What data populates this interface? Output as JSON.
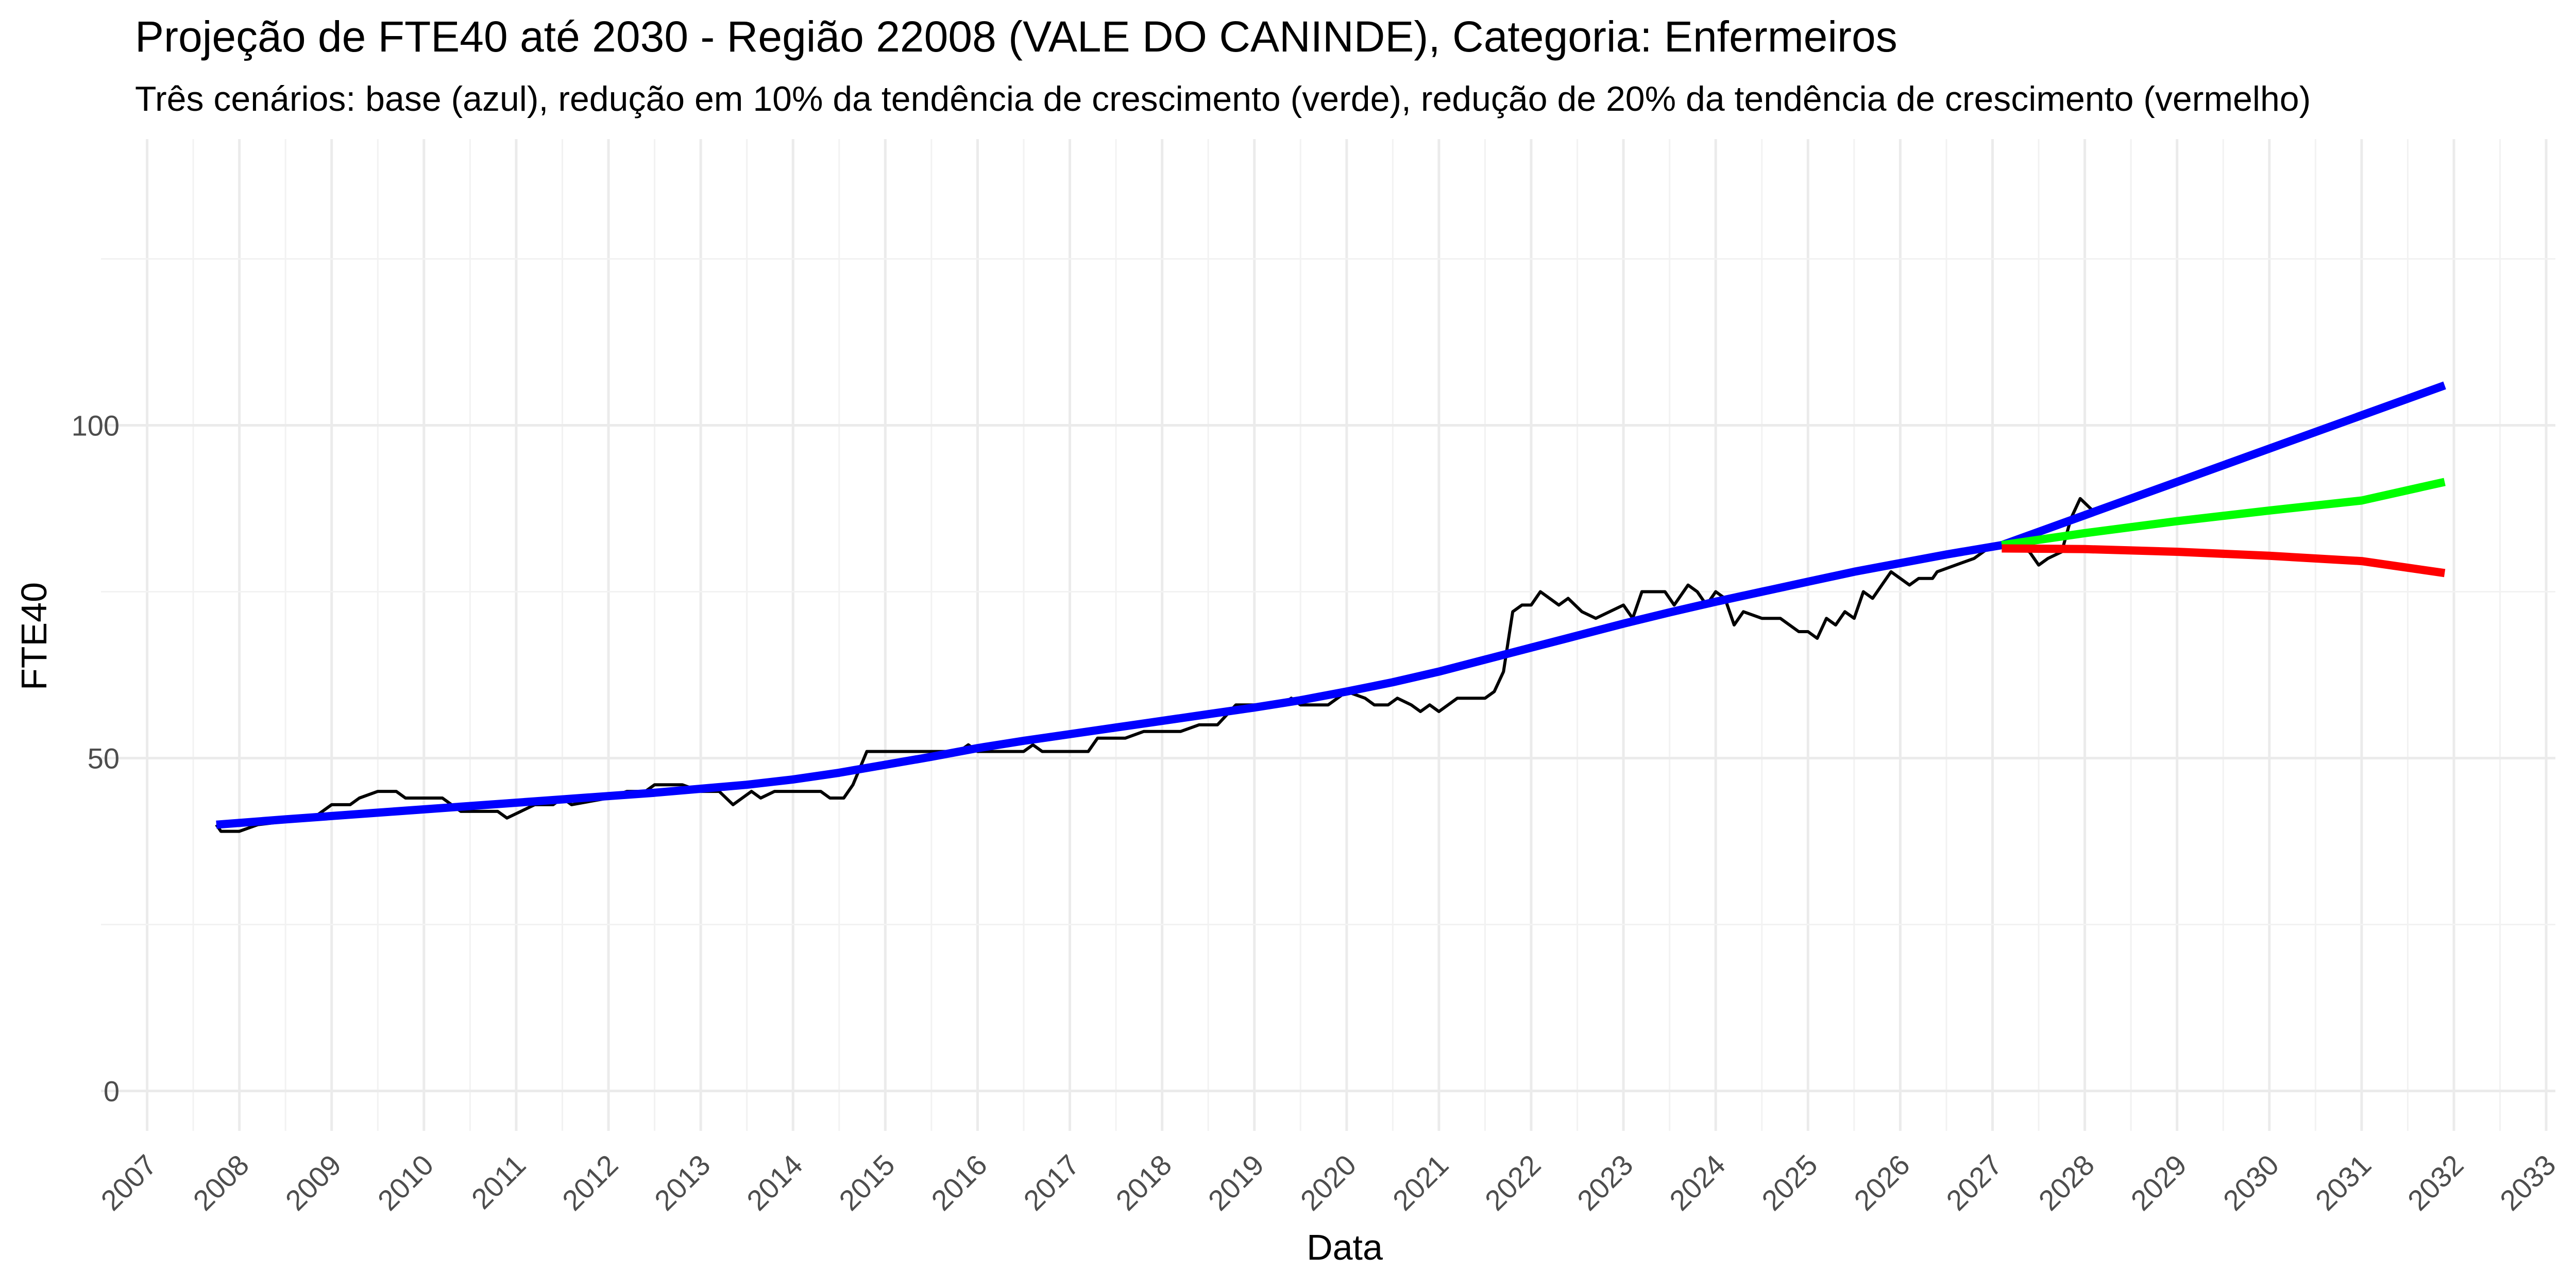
{
  "chart_data": {
    "type": "line",
    "title": "Projeção de FTE40 até 2030 - Região 22008 (VALE DO CANINDE), Categoria: Enfermeiros",
    "subtitle": "Três cenários: base (azul), redução em 10% da tendência de crescimento (verde), redução de 20% da tendência de crescimento (vermelho)",
    "xlabel": "Data",
    "ylabel": "FTE40",
    "x_ticks": [
      "2007",
      "2008",
      "2009",
      "2010",
      "2011",
      "2012",
      "2013",
      "2014",
      "2015",
      "2016",
      "2017",
      "2018",
      "2019",
      "2020",
      "2021",
      "2022",
      "2023",
      "2024",
      "2025",
      "2026",
      "2027",
      "2028",
      "2029",
      "2030",
      "2031",
      "2032",
      "2033"
    ],
    "y_ticks": [
      "0",
      "50",
      "100"
    ],
    "xlim": [
      2006.5,
      2033.1
    ],
    "ylim": [
      -6,
      143
    ],
    "grid": true,
    "series": [
      {
        "color": "#000000",
        "points": [
          [
            2007.75,
            40
          ],
          [
            2007.8,
            39
          ],
          [
            2008.0,
            39
          ],
          [
            2008.2,
            40
          ],
          [
            2008.8,
            41
          ],
          [
            2009.0,
            43
          ],
          [
            2009.2,
            43
          ],
          [
            2009.3,
            44
          ],
          [
            2009.5,
            45
          ],
          [
            2009.7,
            45
          ],
          [
            2009.8,
            44
          ],
          [
            2010.2,
            44
          ],
          [
            2010.4,
            42
          ],
          [
            2010.8,
            42
          ],
          [
            2010.9,
            41
          ],
          [
            2011.05,
            42
          ],
          [
            2011.2,
            43
          ],
          [
            2011.4,
            43
          ],
          [
            2011.5,
            44
          ],
          [
            2011.6,
            43
          ],
          [
            2012.0,
            44
          ],
          [
            2012.2,
            45
          ],
          [
            2012.4,
            45
          ],
          [
            2012.5,
            46
          ],
          [
            2012.8,
            46
          ],
          [
            2013.0,
            45
          ],
          [
            2013.2,
            45
          ],
          [
            2013.35,
            43
          ],
          [
            2013.45,
            44
          ],
          [
            2013.55,
            45
          ],
          [
            2013.65,
            44
          ],
          [
            2013.8,
            45
          ],
          [
            2014.2,
            45
          ],
          [
            2014.3,
            45
          ],
          [
            2014.4,
            44
          ],
          [
            2014.55,
            44
          ],
          [
            2014.65,
            46
          ],
          [
            2014.8,
            51
          ],
          [
            2015.8,
            51
          ],
          [
            2015.9,
            52
          ],
          [
            2016.0,
            51
          ],
          [
            2016.2,
            51
          ],
          [
            2016.5,
            51
          ],
          [
            2016.6,
            52
          ],
          [
            2016.7,
            51
          ],
          [
            2017.2,
            51
          ],
          [
            2017.3,
            53
          ],
          [
            2017.6,
            53
          ],
          [
            2017.8,
            54
          ],
          [
            2018.2,
            54
          ],
          [
            2018.4,
            55
          ],
          [
            2018.6,
            55
          ],
          [
            2018.8,
            58
          ],
          [
            2019.1,
            58
          ],
          [
            2019.3,
            58
          ],
          [
            2019.4,
            59
          ],
          [
            2019.5,
            58
          ],
          [
            2019.8,
            58
          ],
          [
            2020.0,
            60
          ],
          [
            2020.2,
            59
          ],
          [
            2020.3,
            58
          ],
          [
            2020.45,
            58
          ],
          [
            2020.55,
            59
          ],
          [
            2020.7,
            58
          ],
          [
            2020.8,
            57
          ],
          [
            2020.9,
            58
          ],
          [
            2021.0,
            57
          ],
          [
            2021.2,
            59
          ],
          [
            2021.5,
            59
          ],
          [
            2021.6,
            60
          ],
          [
            2021.7,
            63
          ],
          [
            2021.8,
            72
          ],
          [
            2021.9,
            73
          ],
          [
            2022.0,
            73
          ],
          [
            2022.1,
            75
          ],
          [
            2022.2,
            74
          ],
          [
            2022.3,
            73
          ],
          [
            2022.4,
            74
          ],
          [
            2022.55,
            72
          ],
          [
            2022.7,
            71
          ],
          [
            2022.85,
            72
          ],
          [
            2023.0,
            73
          ],
          [
            2023.1,
            71
          ],
          [
            2023.2,
            75
          ],
          [
            2023.35,
            75
          ],
          [
            2023.45,
            75
          ],
          [
            2023.55,
            73
          ],
          [
            2023.7,
            76
          ],
          [
            2023.8,
            75
          ],
          [
            2023.9,
            73
          ],
          [
            2024.0,
            75
          ],
          [
            2024.1,
            74
          ],
          [
            2024.2,
            70
          ],
          [
            2024.3,
            72
          ],
          [
            2024.5,
            71
          ],
          [
            2024.7,
            71
          ],
          [
            2024.9,
            69
          ],
          [
            2025.0,
            69
          ],
          [
            2025.1,
            68
          ],
          [
            2025.2,
            71
          ],
          [
            2025.3,
            70
          ],
          [
            2025.4,
            72
          ],
          [
            2025.5,
            71
          ],
          [
            2025.6,
            75
          ],
          [
            2025.7,
            74
          ],
          [
            2025.8,
            76
          ],
          [
            2025.9,
            78
          ],
          [
            2026.0,
            77
          ],
          [
            2026.1,
            76
          ],
          [
            2026.2,
            77
          ],
          [
            2026.35,
            77
          ],
          [
            2026.4,
            78
          ],
          [
            2026.6,
            79
          ],
          [
            2026.8,
            80
          ],
          [
            2027.0,
            82
          ],
          [
            2027.2,
            82
          ],
          [
            2027.4,
            81
          ],
          [
            2027.5,
            79
          ],
          [
            2027.6,
            80
          ],
          [
            2027.75,
            81
          ],
          [
            2027.85,
            86
          ],
          [
            2027.95,
            89
          ],
          [
            2028.1,
            87
          ]
        ]
      },
      {
        "color": "#0000ff",
        "points": [
          [
            2007.75,
            40.0
          ],
          [
            2008.5,
            40.8
          ],
          [
            2009.5,
            41.8
          ],
          [
            2010.5,
            42.8
          ],
          [
            2011.5,
            43.8
          ],
          [
            2012.5,
            44.8
          ],
          [
            2013.5,
            46.0
          ],
          [
            2014.0,
            46.8
          ],
          [
            2014.5,
            47.8
          ],
          [
            2015.0,
            49.0
          ],
          [
            2015.5,
            50.2
          ],
          [
            2016.0,
            51.5
          ],
          [
            2016.5,
            52.6
          ],
          [
            2017.0,
            53.6
          ],
          [
            2017.5,
            54.6
          ],
          [
            2018.0,
            55.6
          ],
          [
            2018.5,
            56.6
          ],
          [
            2019.0,
            57.6
          ],
          [
            2019.5,
            58.7
          ],
          [
            2020.0,
            60.0
          ],
          [
            2020.5,
            61.4
          ],
          [
            2021.0,
            63.0
          ],
          [
            2021.5,
            64.8
          ],
          [
            2022.0,
            66.6
          ],
          [
            2022.5,
            68.4
          ],
          [
            2023.0,
            70.2
          ],
          [
            2023.5,
            71.9
          ],
          [
            2024.0,
            73.5
          ],
          [
            2024.5,
            75.0
          ],
          [
            2025.0,
            76.5
          ],
          [
            2025.5,
            78.0
          ],
          [
            2026.0,
            79.3
          ],
          [
            2026.5,
            80.6
          ],
          [
            2027.1,
            82.0
          ]
        ]
      },
      {
        "color": "#0000ff",
        "points": [
          [
            2027.1,
            82.0
          ],
          [
            2031.9,
            106.0
          ]
        ]
      },
      {
        "color": "#00ff00",
        "points": [
          [
            2027.1,
            82.0
          ],
          [
            2028.0,
            83.8
          ],
          [
            2029.0,
            85.6
          ],
          [
            2030.0,
            87.2
          ],
          [
            2031.0,
            88.7
          ],
          [
            2031.9,
            91.5
          ]
        ]
      },
      {
        "color": "#ff0000",
        "points": [
          [
            2027.1,
            81.5
          ],
          [
            2028.0,
            81.4
          ],
          [
            2029.0,
            81.0
          ],
          [
            2030.0,
            80.4
          ],
          [
            2031.0,
            79.6
          ],
          [
            2031.9,
            77.8
          ]
        ]
      }
    ]
  }
}
